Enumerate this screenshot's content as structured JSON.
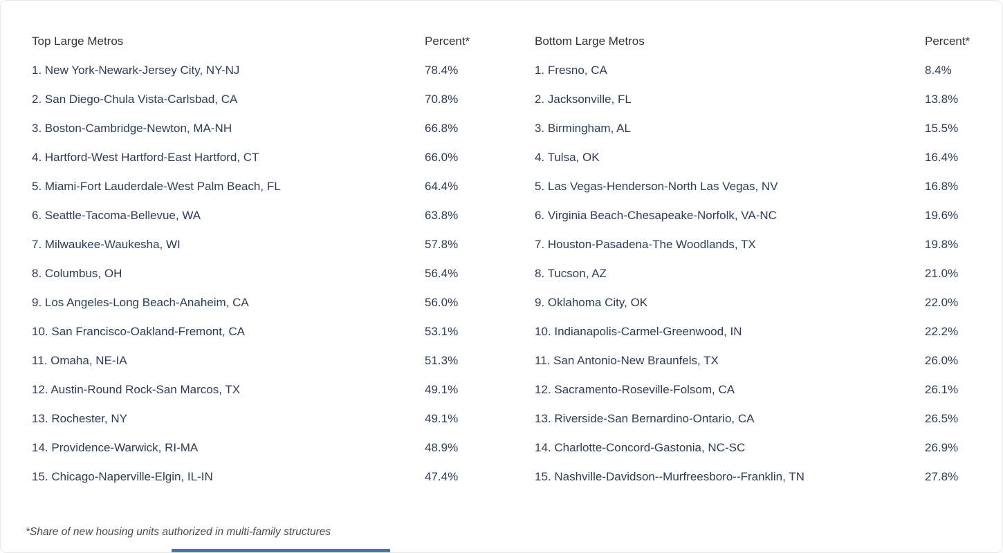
{
  "chart_data": {
    "type": "table",
    "tables": [
      {
        "title": "Top Large Metros",
        "value_header": "Percent*",
        "rows": [
          {
            "label": "1. New York-Newark-Jersey City, NY-NJ",
            "value": "78.4%"
          },
          {
            "label": "2. San Diego-Chula Vista-Carlsbad, CA",
            "value": "70.8%"
          },
          {
            "label": "3. Boston-Cambridge-Newton, MA-NH",
            "value": "66.8%"
          },
          {
            "label": "4. Hartford-West Hartford-East Hartford, CT",
            "value": "66.0%"
          },
          {
            "label": "5. Miami-Fort Lauderdale-West Palm Beach, FL",
            "value": "64.4%"
          },
          {
            "label": "6. Seattle-Tacoma-Bellevue, WA",
            "value": "63.8%"
          },
          {
            "label": "7. Milwaukee-Waukesha, WI",
            "value": "57.8%"
          },
          {
            "label": "8. Columbus, OH",
            "value": "56.4%"
          },
          {
            "label": "9. Los Angeles-Long Beach-Anaheim, CA",
            "value": "56.0%"
          },
          {
            "label": "10. San Francisco-Oakland-Fremont, CA",
            "value": "53.1%"
          },
          {
            "label": "11. Omaha, NE-IA",
            "value": "51.3%"
          },
          {
            "label": "12. Austin-Round Rock-San Marcos, TX",
            "value": "49.1%"
          },
          {
            "label": "13. Rochester, NY",
            "value": "49.1%"
          },
          {
            "label": "14. Providence-Warwick, RI-MA",
            "value": "48.9%"
          },
          {
            "label": "15. Chicago-Naperville-Elgin, IL-IN",
            "value": "47.4%"
          }
        ]
      },
      {
        "title": "Bottom Large Metros",
        "value_header": "Percent*",
        "rows": [
          {
            "label": "1. Fresno, CA",
            "value": "8.4%"
          },
          {
            "label": "2. Jacksonville, FL",
            "value": "13.8%"
          },
          {
            "label": "3. Birmingham, AL",
            "value": "15.5%"
          },
          {
            "label": "4. Tulsa, OK",
            "value": "16.4%"
          },
          {
            "label": "5. Las Vegas-Henderson-North Las Vegas, NV",
            "value": "16.8%"
          },
          {
            "label": "6. Virginia Beach-Chesapeake-Norfolk, VA-NC",
            "value": "19.6%"
          },
          {
            "label": "7. Houston-Pasadena-The Woodlands, TX",
            "value": "19.8%"
          },
          {
            "label": "8. Tucson, AZ",
            "value": "21.0%"
          },
          {
            "label": "9. Oklahoma City, OK",
            "value": "22.0%"
          },
          {
            "label": "10. Indianapolis-Carmel-Greenwood, IN",
            "value": "22.2%"
          },
          {
            "label": "11. San Antonio-New Braunfels, TX",
            "value": "26.0%"
          },
          {
            "label": "12. Sacramento-Roseville-Folsom, CA",
            "value": "26.1%"
          },
          {
            "label": "13. Riverside-San Bernardino-Ontario, CA",
            "value": "26.5%"
          },
          {
            "label": "14. Charlotte-Concord-Gastonia, NC-SC",
            "value": "26.9%"
          },
          {
            "label": "15. Nashville-Davidson--Murfreesboro--Franklin, TN",
            "value": "27.8%"
          }
        ]
      }
    ],
    "footnote": "*Share of new housing units authorized in multi-family structures"
  },
  "colors": {
    "row_text": "#2e3d53",
    "header_text": "#333333",
    "footnote_text": "#4a4a4a",
    "accent_bar": "#4173b6",
    "card_border": "#e8e8e8"
  }
}
